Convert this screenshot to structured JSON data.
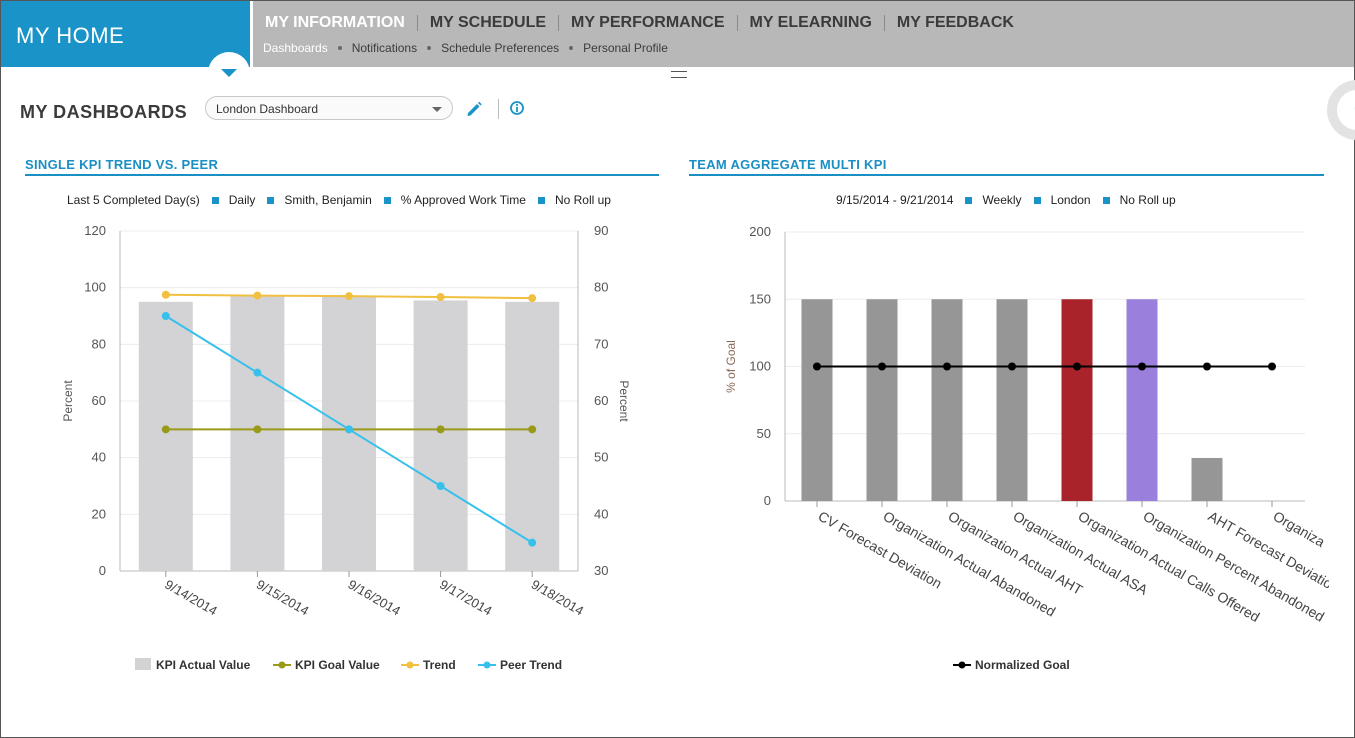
{
  "app": {
    "title": "MY HOME"
  },
  "nav": {
    "main": [
      "MY INFORMATION",
      "MY SCHEDULE",
      "MY PERFORMANCE",
      "MY ELEARNING",
      "MY FEEDBACK"
    ],
    "sub": [
      "Dashboards",
      "Notifications",
      "Schedule Preferences",
      "Personal Profile"
    ]
  },
  "page": {
    "title": "MY DASHBOARDS",
    "dashboard_select": "London Dashboard"
  },
  "colors": {
    "accent": "#1993c8",
    "bar_gray": "#d3d3d5",
    "kpi_goal": "#9a9a1a",
    "trend": "#f2c040",
    "peer_trend": "#38c0ec",
    "bar_dark": "#969696",
    "bar_red": "#a8232a",
    "bar_purple": "#9a7fdc"
  },
  "panels": {
    "left": {
      "title": "SINGLE KPI TREND VS. PEER",
      "filters": [
        "Last 5 Completed Day(s)",
        "Daily",
        "Smith, Benjamin",
        "% Approved Work Time",
        "No Roll up"
      ]
    },
    "right": {
      "title": "TEAM AGGREGATE MULTI KPI",
      "filters": [
        "9/15/2014 - 9/21/2014",
        "Weekly",
        "London",
        "No Roll up"
      ]
    }
  },
  "chart_data": [
    {
      "type": "bar",
      "categories": [
        "9/14/2014",
        "9/15/2014",
        "9/16/2014",
        "9/17/2014",
        "9/18/2014"
      ],
      "ylabel": "Percent",
      "y2label": "Percent",
      "ylim": [
        0,
        120
      ],
      "y2lim": [
        30,
        90
      ],
      "yticks": [
        0,
        20,
        40,
        60,
        80,
        100,
        120
      ],
      "y2ticks": [
        30,
        40,
        50,
        60,
        70,
        80,
        90
      ],
      "grid": true,
      "legend_position": "bottom",
      "series": [
        {
          "name": "KPI Actual Value",
          "type": "bar",
          "axis": "left",
          "values": [
            95,
            97,
            97,
            95.5,
            95
          ]
        },
        {
          "name": "KPI Goal Value",
          "type": "line",
          "axis": "left",
          "values": [
            50,
            50,
            50,
            50,
            50
          ]
        },
        {
          "name": "Trend",
          "type": "line",
          "axis": "left",
          "values": [
            97.5,
            97.2,
            97,
            96.7,
            96.3
          ]
        },
        {
          "name": "Peer Trend",
          "type": "line",
          "axis": "right",
          "values": [
            75,
            65,
            55,
            45,
            35
          ]
        }
      ]
    },
    {
      "type": "bar",
      "categories": [
        "CV Forecast Deviation",
        "Organization Actual Abandoned",
        "Organization Actual AHT",
        "Organization Actual ASA",
        "Organization Actual Calls Offered",
        "Organization Percent Abandoned",
        "AHT Forecast Deviation",
        "Organiza"
      ],
      "ylabel": "% of Goal",
      "ylim": [
        0,
        200
      ],
      "yticks": [
        0,
        50,
        100,
        150,
        200
      ],
      "grid": true,
      "legend_position": "bottom",
      "series": [
        {
          "name": "",
          "type": "bar",
          "values": [
            150,
            150,
            150,
            150,
            150,
            150,
            32,
            0
          ]
        },
        {
          "name": "Normalized Goal",
          "type": "line",
          "values": [
            100,
            100,
            100,
            100,
            100,
            100,
            100,
            100
          ]
        }
      ]
    }
  ]
}
